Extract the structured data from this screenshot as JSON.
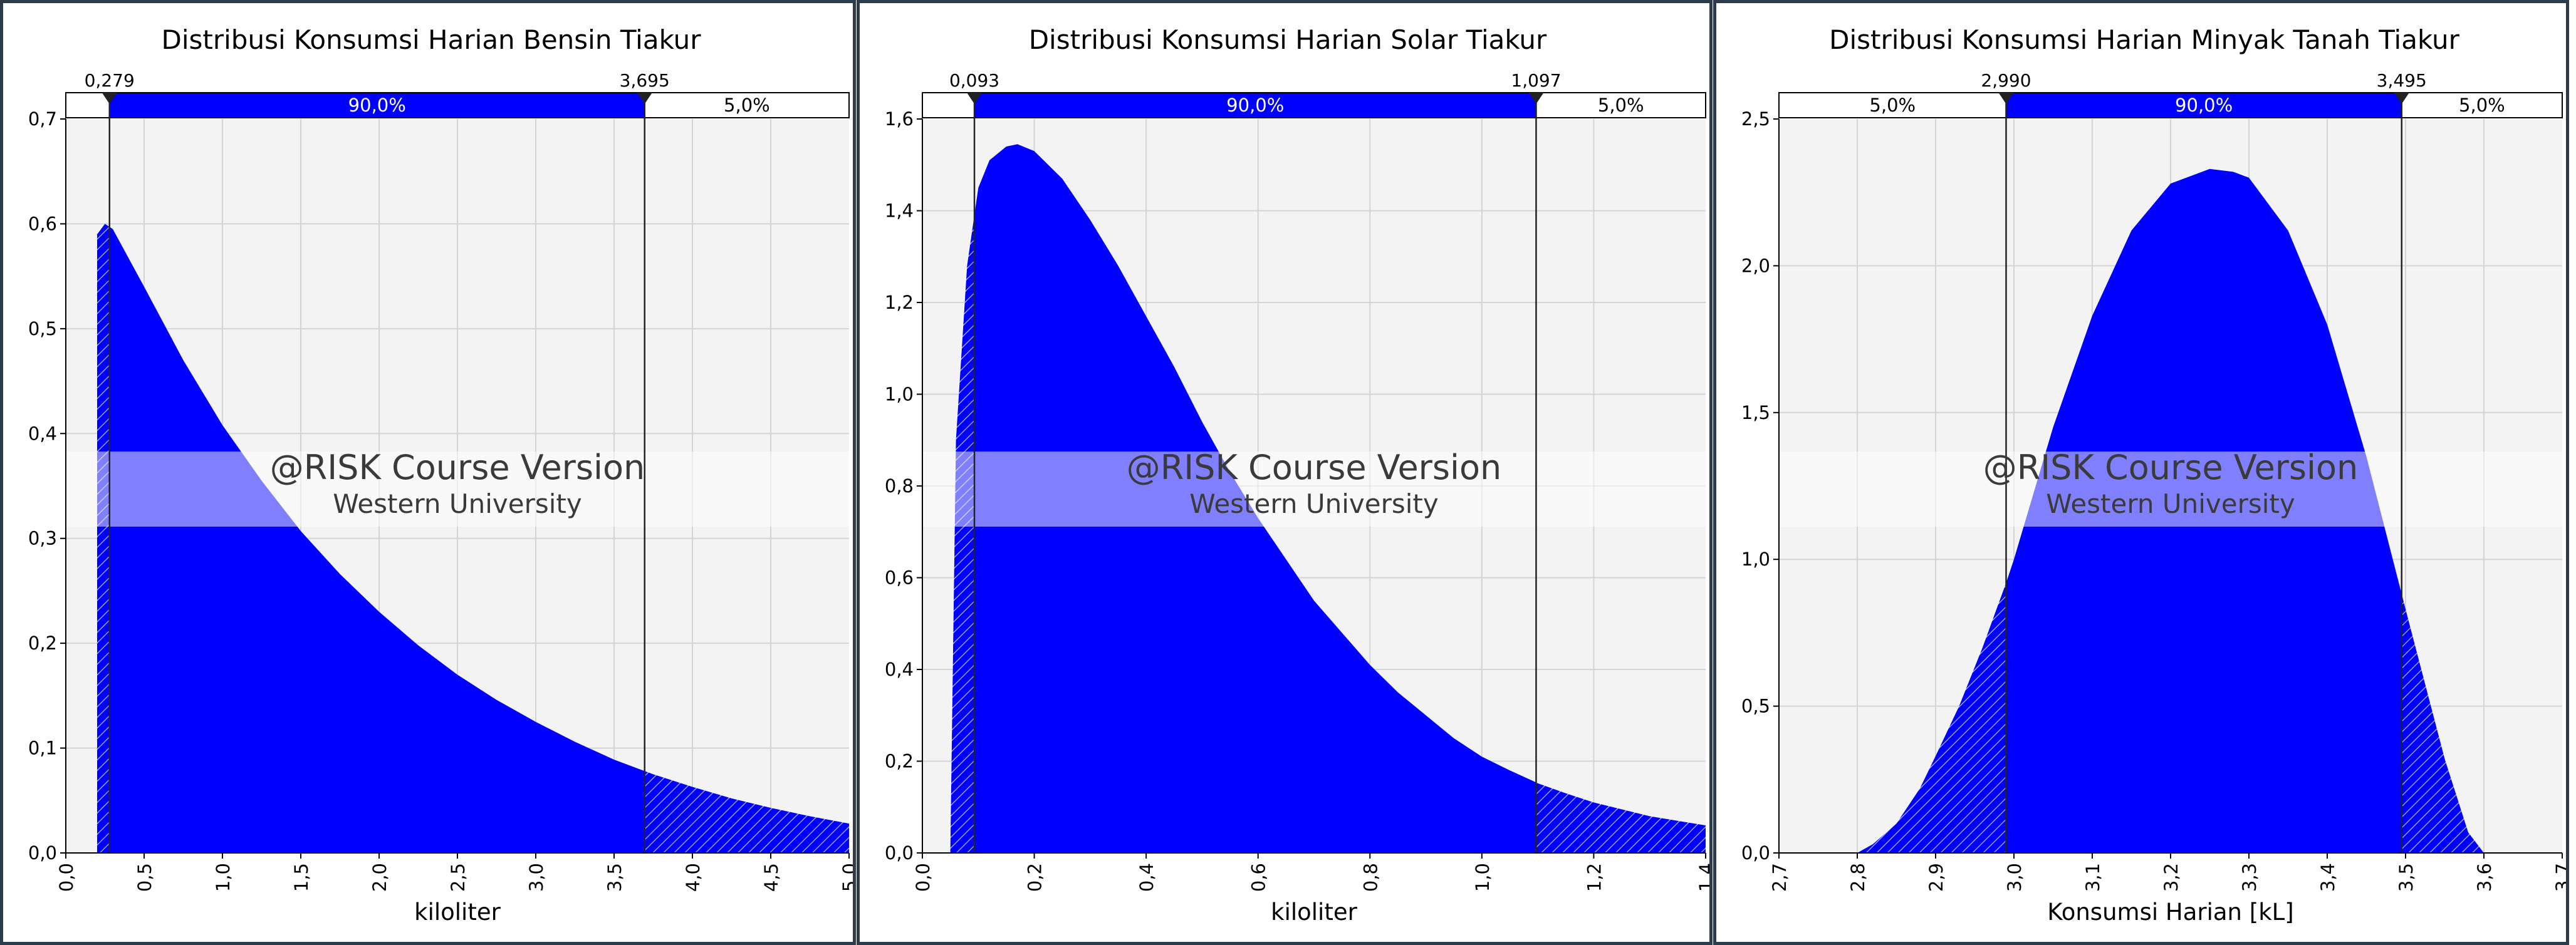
{
  "colors": {
    "fill": "#0000ff",
    "plot_bg": "#f3f3f3",
    "grid": "#d4d4d4",
    "frame": "#2d3b4a",
    "watermark_band": "#ffffff"
  },
  "watermark": {
    "line1": "@RISK Course Version",
    "line2": "Western University"
  },
  "chart_data": [
    {
      "type": "area",
      "title": "Distribusi Konsumsi Harian Bensin Tiakur",
      "xlabel": "kiloliter",
      "ylabel": "",
      "xlim": [
        0,
        5
      ],
      "ylim": [
        0,
        0.7
      ],
      "xticks": [
        "0,0",
        "0,5",
        "1,0",
        "1,5",
        "2,0",
        "2,5",
        "3,0",
        "3,5",
        "4,0",
        "4,5",
        "5,0"
      ],
      "yticks": [
        "0,0",
        "0,1",
        "0,2",
        "0,3",
        "0,4",
        "0,5",
        "0,6",
        "0,7"
      ],
      "grid": true,
      "x": [
        0.2,
        0.25,
        0.3,
        0.5,
        0.75,
        1.0,
        1.25,
        1.5,
        1.75,
        2.0,
        2.25,
        2.5,
        2.75,
        3.0,
        3.25,
        3.5,
        3.75,
        4.0,
        4.25,
        4.5,
        4.75,
        5.0
      ],
      "y": [
        0.59,
        0.6,
        0.595,
        0.54,
        0.47,
        0.408,
        0.355,
        0.307,
        0.266,
        0.23,
        0.198,
        0.17,
        0.146,
        0.125,
        0.106,
        0.089,
        0.075,
        0.063,
        0.052,
        0.043,
        0.035,
        0.028
      ],
      "markers": [
        {
          "x": 0.279,
          "label": "0,279"
        },
        {
          "x": 3.695,
          "label": "3,695"
        }
      ],
      "bands": [
        "5,0%",
        "90,0%",
        "5,0%"
      ]
    },
    {
      "type": "area",
      "title": "Distribusi Konsumsi Harian Solar Tiakur",
      "xlabel": "kiloliter",
      "ylabel": "",
      "xlim": [
        0,
        1.4
      ],
      "ylim": [
        0,
        1.6
      ],
      "xticks": [
        "0,0",
        "0,2",
        "0,4",
        "0,6",
        "0,8",
        "1,0",
        "1,2",
        "1,4"
      ],
      "yticks": [
        "0,0",
        "0,2",
        "0,4",
        "0,6",
        "0,8",
        "1,0",
        "1,2",
        "1,4",
        "1,6"
      ],
      "grid": true,
      "x": [
        0.05,
        0.06,
        0.08,
        0.1,
        0.12,
        0.15,
        0.17,
        0.2,
        0.25,
        0.3,
        0.35,
        0.4,
        0.45,
        0.5,
        0.55,
        0.6,
        0.65,
        0.7,
        0.75,
        0.8,
        0.85,
        0.9,
        0.95,
        1.0,
        1.05,
        1.1,
        1.15,
        1.2,
        1.25,
        1.3,
        1.35,
        1.4
      ],
      "y": [
        0.0,
        0.9,
        1.28,
        1.45,
        1.51,
        1.54,
        1.545,
        1.53,
        1.47,
        1.38,
        1.28,
        1.17,
        1.06,
        0.94,
        0.83,
        0.73,
        0.64,
        0.55,
        0.48,
        0.41,
        0.35,
        0.3,
        0.25,
        0.21,
        0.18,
        0.152,
        0.13,
        0.11,
        0.095,
        0.08,
        0.07,
        0.06
      ],
      "markers": [
        {
          "x": 0.093,
          "label": "0,093"
        },
        {
          "x": 1.097,
          "label": "1,097"
        }
      ],
      "bands": [
        "5,0%",
        "90,0%",
        "5,0%"
      ]
    },
    {
      "type": "area",
      "title": "Distribusi Konsumsi Harian Minyak Tanah Tiakur",
      "xlabel": "Konsumsi Harian [kL]",
      "ylabel": "",
      "xlim": [
        2.7,
        3.7
      ],
      "ylim": [
        0,
        2.5
      ],
      "xticks": [
        "2,7",
        "2,8",
        "2,9",
        "3,0",
        "3,1",
        "3,2",
        "3,3",
        "3,4",
        "3,5",
        "3,6",
        "3,7"
      ],
      "yticks": [
        "0,0",
        "0,5",
        "1,0",
        "1,5",
        "2,0",
        "2,5"
      ],
      "grid": true,
      "x": [
        2.7,
        2.8,
        2.82,
        2.85,
        2.88,
        2.9,
        2.93,
        2.96,
        2.99,
        3.0,
        3.05,
        3.1,
        3.15,
        3.2,
        3.25,
        3.28,
        3.3,
        3.35,
        3.4,
        3.45,
        3.5,
        3.55,
        3.58,
        3.6,
        3.7
      ],
      "y": [
        0.0,
        0.0,
        0.03,
        0.1,
        0.22,
        0.33,
        0.5,
        0.7,
        0.92,
        1.0,
        1.45,
        1.83,
        2.12,
        2.28,
        2.33,
        2.32,
        2.3,
        2.12,
        1.8,
        1.35,
        0.83,
        0.32,
        0.07,
        0.0,
        0.0
      ],
      "markers": [
        {
          "x": 2.99,
          "label": "2,990"
        },
        {
          "x": 3.495,
          "label": "3,495"
        }
      ],
      "bands": [
        "5,0%",
        "90,0%",
        "5,0%"
      ]
    }
  ]
}
